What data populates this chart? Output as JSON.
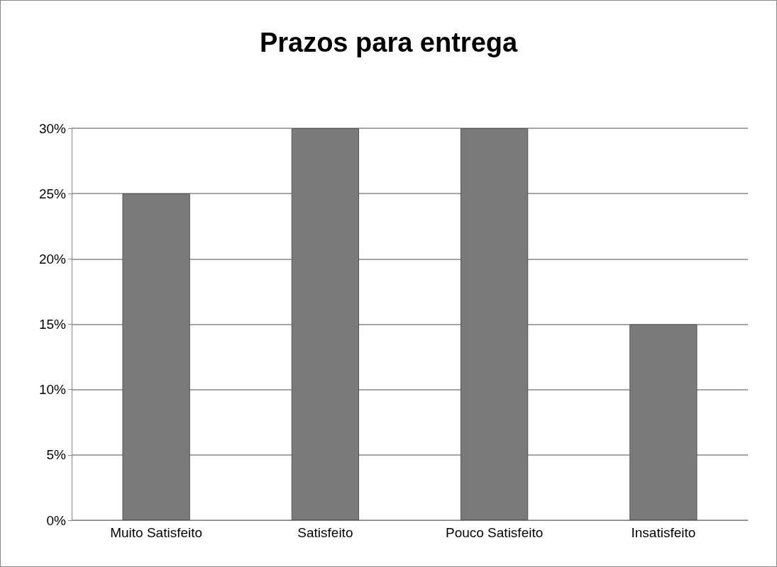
{
  "chart_data": {
    "type": "bar",
    "title": "Prazos para entrega",
    "categories": [
      "Muito Satisfeito",
      "Satisfeito",
      "Pouco Satisfeito",
      "Insatisfeito"
    ],
    "values": [
      25,
      30,
      30,
      15
    ],
    "color": "#7a7a7a",
    "ylim": [
      0,
      30
    ],
    "yticks": [
      {
        "value": 0,
        "label": "0%"
      },
      {
        "value": 5,
        "label": "5%"
      },
      {
        "value": 10,
        "label": "10%"
      },
      {
        "value": 15,
        "label": "15%"
      },
      {
        "value": 20,
        "label": "20%"
      },
      {
        "value": 25,
        "label": "25%"
      },
      {
        "value": 30,
        "label": "30%"
      }
    ],
    "grid": true
  }
}
